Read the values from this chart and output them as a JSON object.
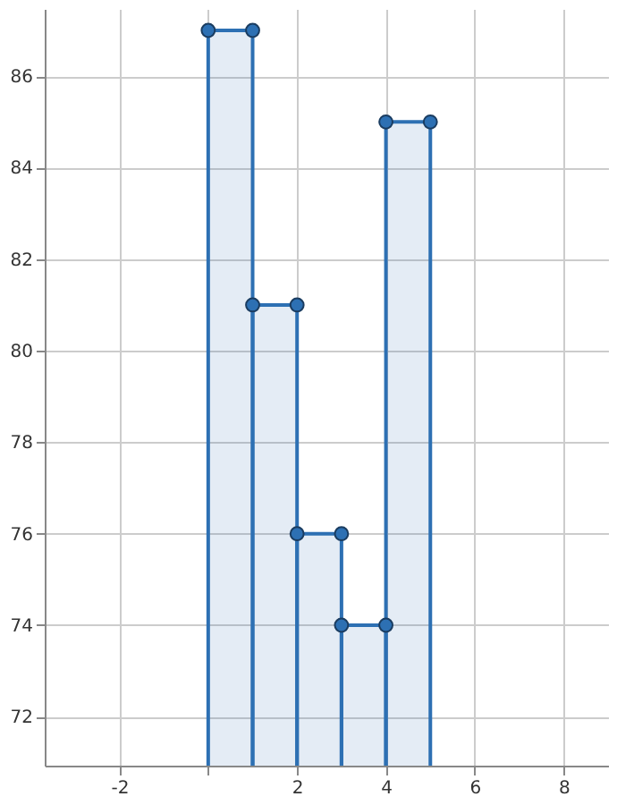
{
  "chart_data": {
    "type": "histogram",
    "bins": [
      0,
      1,
      2,
      3,
      4,
      5
    ],
    "values": [
      87,
      81,
      76,
      74,
      85
    ],
    "color": "#2d70b3",
    "series": [
      {
        "type": "scatter",
        "color": "#2d70b3",
        "marker": "circle",
        "x": [
          0,
          1,
          1,
          2,
          2,
          3,
          3,
          4,
          4,
          5
        ],
        "values": [
          87,
          87,
          81,
          81,
          76,
          76,
          74,
          74,
          85,
          85
        ]
      }
    ],
    "xlim": [
      -3.68,
      9.0
    ],
    "ylim": [
      70.93,
      87.47
    ],
    "xticks": [
      -2,
      {
        "value": 0,
        "label": null
      },
      2,
      4,
      6,
      8
    ],
    "yticks": [
      72,
      74,
      76,
      78,
      80,
      82,
      84,
      86
    ],
    "grid": true
  }
}
